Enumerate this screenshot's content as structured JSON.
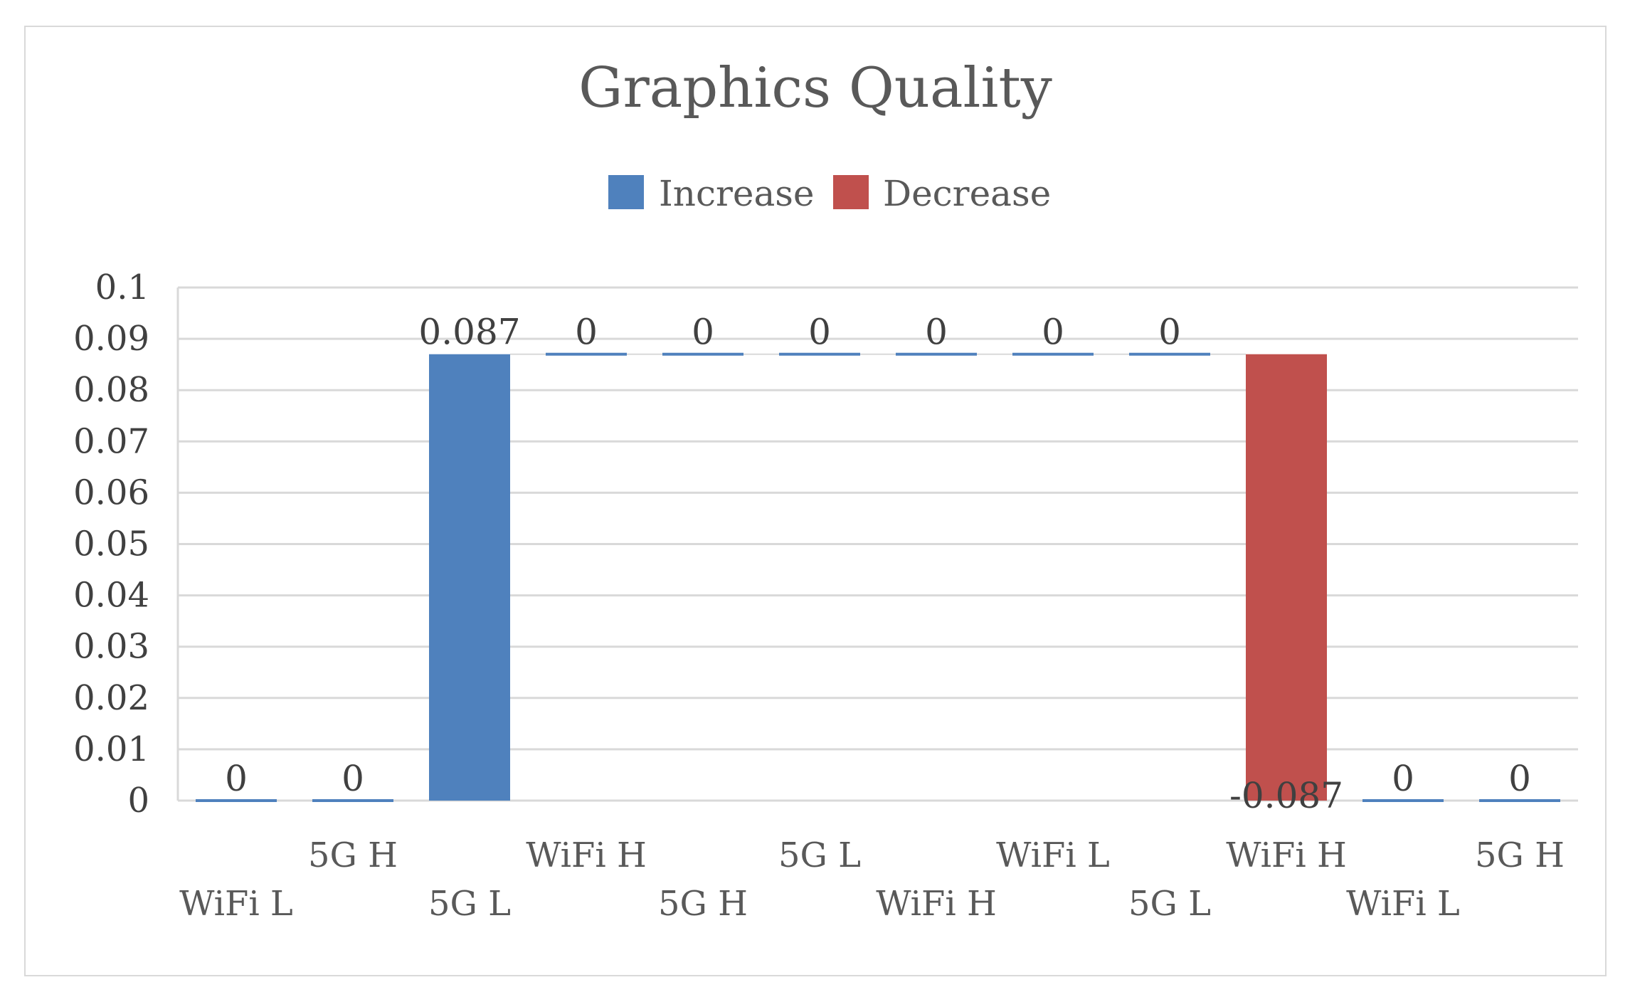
{
  "chart_data": {
    "type": "bar",
    "subtype": "waterfall",
    "title": "Graphics Quality",
    "categories": [
      "WiFi L",
      "5G H",
      "5G L",
      "WiFi H",
      "5G H",
      "5G L",
      "WiFi H",
      "WiFi L",
      "5G L",
      "WiFi H",
      "WiFi L",
      "5G H"
    ],
    "values": [
      0,
      0,
      0.087,
      0,
      0,
      0,
      0,
      0,
      0,
      -0.087,
      0,
      0
    ],
    "data_labels": [
      "0",
      "0",
      "0.087",
      "0",
      "0",
      "0",
      "0",
      "0",
      "0",
      "-0.087",
      "0",
      "0"
    ],
    "series": [
      {
        "name": "Increase",
        "color": "#4f81bd"
      },
      {
        "name": "Decrease",
        "color": "#c0504d"
      }
    ],
    "yticks": [
      "0.1",
      "0.09",
      "0.08",
      "0.07",
      "0.06",
      "0.05",
      "0.04",
      "0.03",
      "0.02",
      "0.01",
      "0"
    ],
    "ylim": [
      0,
      0.1
    ],
    "xlabel": "",
    "ylabel": "",
    "grid": true,
    "legend_position": "top"
  }
}
